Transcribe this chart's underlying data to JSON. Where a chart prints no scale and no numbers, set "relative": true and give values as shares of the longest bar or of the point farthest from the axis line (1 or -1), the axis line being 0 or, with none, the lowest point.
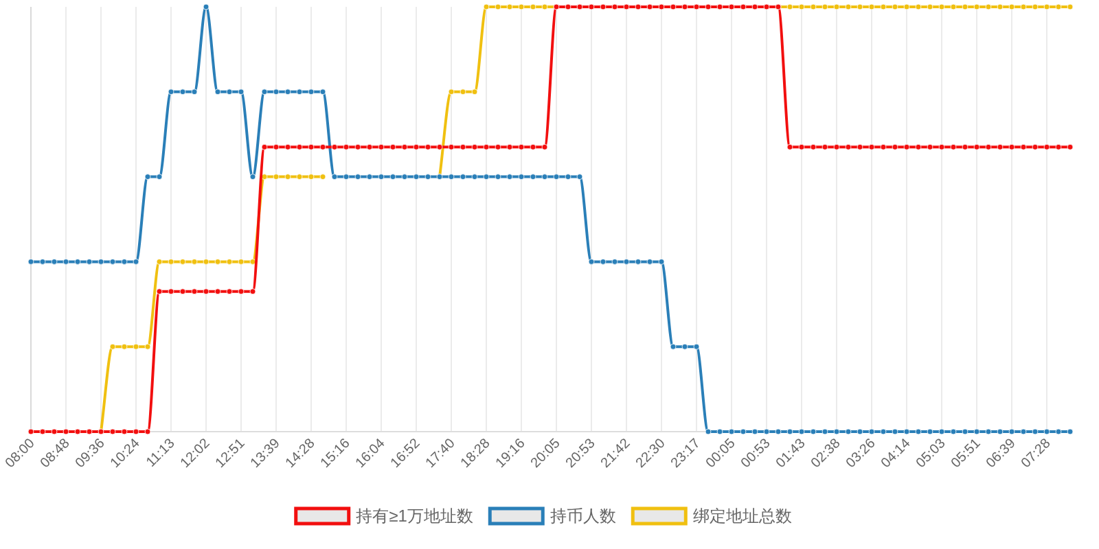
{
  "chart_data": {
    "type": "line",
    "relative": true,
    "grid": "x",
    "legend": "bottom",
    "marker": "circle",
    "line_style": "solid",
    "categories": [
      "08:00",
      null,
      null,
      "08:48",
      null,
      null,
      "09:36",
      null,
      null,
      "10:24",
      null,
      null,
      "11:13",
      null,
      null,
      "12:02",
      null,
      null,
      "12:51",
      null,
      null,
      "13:39",
      null,
      null,
      "14:28",
      null,
      null,
      "15:16",
      null,
      null,
      "16:04",
      null,
      null,
      "16:52",
      null,
      null,
      "17:40",
      null,
      null,
      "18:28",
      null,
      null,
      "19:16",
      null,
      null,
      "20:05",
      null,
      null,
      "20:53",
      null,
      null,
      "21:42",
      null,
      null,
      "22:30",
      null,
      null,
      "23:17",
      null,
      null,
      "00:05",
      null,
      null,
      "00:53",
      null,
      null,
      "01:43",
      null,
      null,
      "02:38",
      null,
      null,
      "03:26",
      null,
      null,
      "04:14",
      null,
      null,
      "05:03",
      null,
      null,
      "05:51",
      null,
      null,
      "06:39",
      null,
      null,
      "07:28",
      null,
      null
    ],
    "series": [
      {
        "name": "持有≥1万地址数",
        "color": "#f20f0f",
        "values": [
          0,
          0,
          0,
          0,
          0,
          0,
          0,
          0,
          0,
          0,
          0,
          0.33,
          0.33,
          0.33,
          0.33,
          0.33,
          0.33,
          0.33,
          0.33,
          0.33,
          0.67,
          0.67,
          0.67,
          0.67,
          0.67,
          0.67,
          0.67,
          0.67,
          0.67,
          0.67,
          0.67,
          0.67,
          0.67,
          0.67,
          0.67,
          0.67,
          0.67,
          0.67,
          0.67,
          0.67,
          0.67,
          0.67,
          0.67,
          0.67,
          0.67,
          1,
          1,
          1,
          1,
          1,
          1,
          1,
          1,
          1,
          1,
          1,
          1,
          1,
          1,
          1,
          1,
          1,
          1,
          1,
          1,
          0.67,
          0.67,
          0.67,
          0.67,
          0.67,
          0.67,
          0.67,
          0.67,
          0.67,
          0.67,
          0.67,
          0.67,
          0.67,
          0.67,
          0.67,
          0.67,
          0.67,
          0.67,
          0.67,
          0.67,
          0.67,
          0.67,
          0.67,
          0.67,
          0.67
        ]
      },
      {
        "name": "持币人数",
        "color": "#2a7fb8",
        "values": [
          0.4,
          0.4,
          0.4,
          0.4,
          0.4,
          0.4,
          0.4,
          0.4,
          0.4,
          0.4,
          0.6,
          0.6,
          0.8,
          0.8,
          0.8,
          1,
          0.8,
          0.8,
          0.8,
          0.6,
          0.8,
          0.8,
          0.8,
          0.8,
          0.8,
          0.8,
          0.6,
          0.6,
          0.6,
          0.6,
          0.6,
          0.6,
          0.6,
          0.6,
          0.6,
          0.6,
          0.6,
          0.6,
          0.6,
          0.6,
          0.6,
          0.6,
          0.6,
          0.6,
          0.6,
          0.6,
          0.6,
          0.6,
          0.4,
          0.4,
          0.4,
          0.4,
          0.4,
          0.4,
          0.4,
          0.2,
          0.2,
          0.2,
          0,
          0,
          0,
          0,
          0,
          0,
          0,
          0,
          0,
          0,
          0,
          0,
          0,
          0,
          0,
          0,
          0,
          0,
          0,
          0,
          0,
          0,
          0,
          0,
          0,
          0,
          0,
          0,
          0,
          0,
          0,
          0
        ]
      },
      {
        "name": "绑定地址总数",
        "color": "#f0c010",
        "values": [
          null,
          null,
          null,
          null,
          null,
          null,
          0,
          0.2,
          0.2,
          0.2,
          0.2,
          0.4,
          0.4,
          0.4,
          0.4,
          0.4,
          0.4,
          0.4,
          0.4,
          0.4,
          0.6,
          0.6,
          0.6,
          0.6,
          0.6,
          0.6,
          null,
          null,
          null,
          null,
          null,
          null,
          null,
          null,
          null,
          0.6,
          0.8,
          0.8,
          0.8,
          1,
          1,
          1,
          1,
          1,
          1,
          1,
          1,
          1,
          1,
          1,
          1,
          1,
          1,
          1,
          1,
          1,
          1,
          1,
          1,
          1,
          1,
          1,
          1,
          1,
          1,
          1,
          1,
          1,
          1,
          1,
          1,
          1,
          1,
          1,
          1,
          1,
          1,
          1,
          1,
          1,
          1,
          1,
          1,
          1,
          1,
          1,
          1,
          1,
          1,
          1
        ]
      }
    ]
  }
}
